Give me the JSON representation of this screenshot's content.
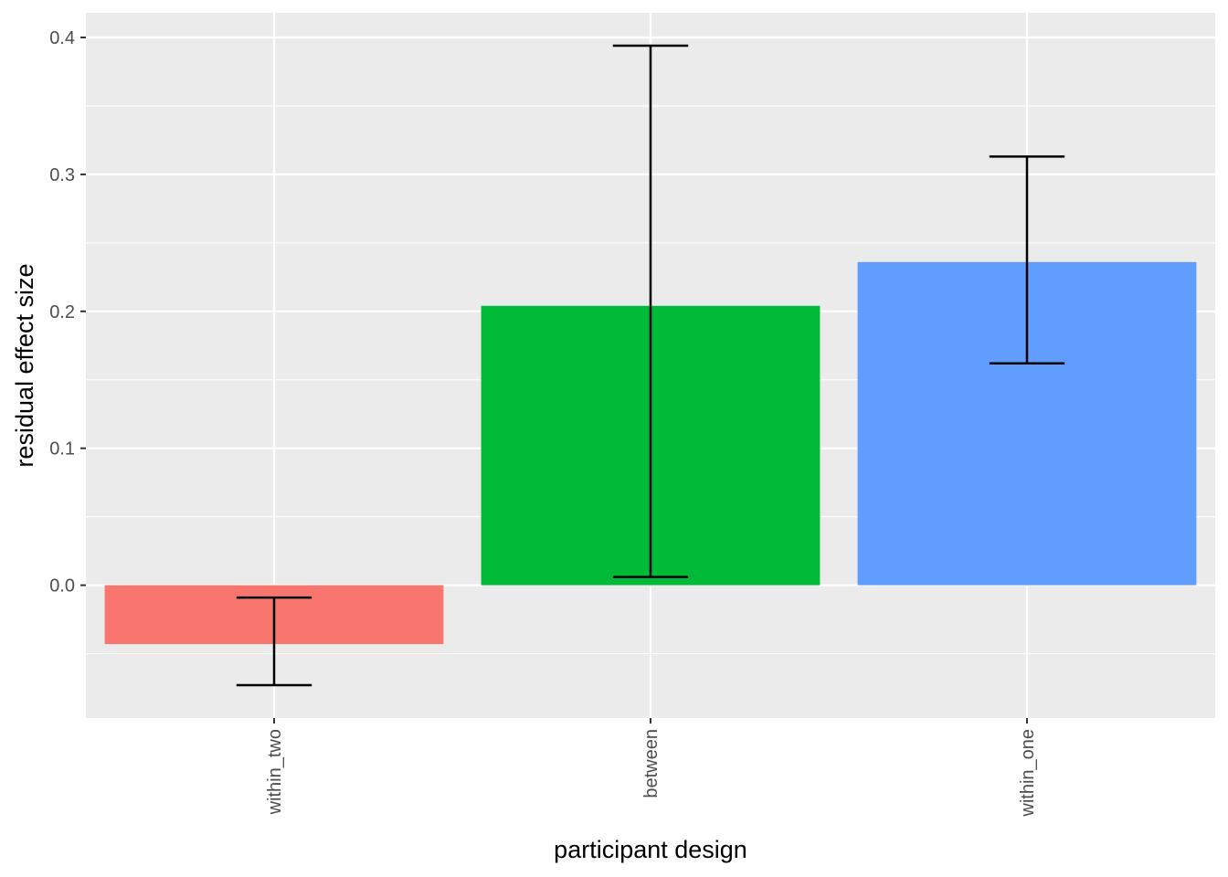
{
  "chart_data": {
    "type": "bar",
    "title": "",
    "xlabel": "participant design",
    "ylabel": "residual effect size",
    "categories": [
      "within_two",
      "between",
      "within_one"
    ],
    "values": [
      -0.043,
      0.204,
      0.236
    ],
    "error_bars": [
      {
        "low": -0.073,
        "high": -0.009
      },
      {
        "low": 0.006,
        "high": 0.394
      },
      {
        "low": 0.162,
        "high": 0.313
      }
    ],
    "colors": [
      "#F8766D",
      "#00BA38",
      "#619CFF"
    ],
    "ylim": [
      -0.097,
      0.418
    ],
    "yticks": [
      0.0,
      0.1,
      0.2,
      0.3,
      0.4
    ],
    "ytick_labels": [
      "0.0",
      "0.1",
      "0.2",
      "0.3",
      "0.4"
    ],
    "xtick_labels": [
      "within_two",
      "between",
      "within_one"
    ],
    "grid": true,
    "legend": "none",
    "panel_color": "#EBEBEB",
    "grid_color": "#FFFFFF",
    "errorbar_color": "#000000"
  }
}
